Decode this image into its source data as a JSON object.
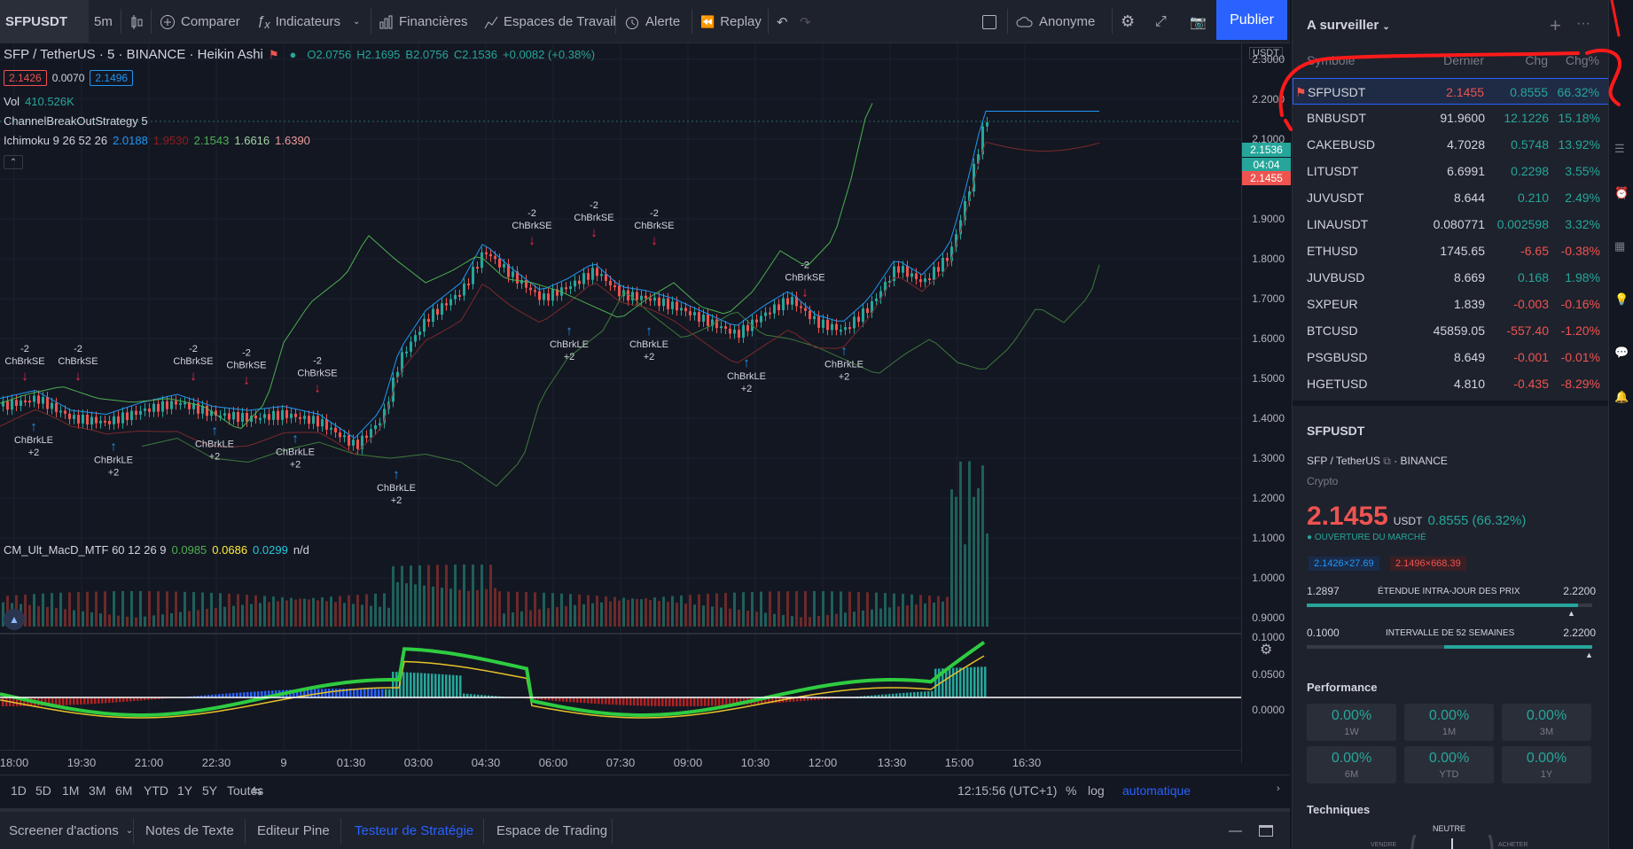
{
  "toolbar": {
    "symbol": "SFPUSDT",
    "interval": "5m",
    "compare": "Comparer",
    "indicators": "Indicateurs",
    "financials": "Financières",
    "workspaces": "Espaces de Travail",
    "alert": "Alerte",
    "replay": "Replay",
    "account": "Anonyme",
    "publish": "Publier"
  },
  "chart": {
    "title": "SFP / TetherUS · 5 · BINANCE · Heikin Ashi",
    "ohlc": {
      "o": "O2.0756",
      "h": "H2.1695",
      "b": "B2.0756",
      "c": "C2.1536",
      "change": "+0.0082 (+0.38%)"
    },
    "bid": "2.1426",
    "spread": "0.0070",
    "ask": "2.1496",
    "volume_label": "Vol",
    "volume_value": "410.526K",
    "strategy": "ChannelBreakOutStrategy 5",
    "ichimoku_label": "Ichimoku 9 26 52 26",
    "ichimoku_values": [
      "2.0188",
      "1.9530",
      "2.1543",
      "1.6616",
      "1.6390"
    ],
    "macd_label": "CM_Ult_MacD_MTF 60 12 26 9",
    "macd_values": [
      "0.0985",
      "0.0686",
      "0.0299",
      "n/d"
    ],
    "currency": "USDT",
    "price_ticks": [
      "2.3000",
      "2.2000",
      "2.1000",
      "2.0000",
      "1.9000",
      "1.8000",
      "1.7000",
      "1.6000",
      "1.5000",
      "1.4000",
      "1.3000",
      "1.2000",
      "1.1000",
      "1.0000",
      "0.9000"
    ],
    "macd_ticks": [
      "0.1000",
      "0.0500",
      "0.0000"
    ],
    "price_tags": {
      "last": "2.1536",
      "countdown": "04:04",
      "current": "2.1455"
    },
    "time_ticks": [
      "18:00",
      "19:30",
      "21:00",
      "22:30",
      "9",
      "01:30",
      "03:00",
      "04:30",
      "06:00",
      "07:30",
      "09:00",
      "10:30",
      "12:00",
      "13:30",
      "15:00",
      "16:30"
    ],
    "signals": {
      "short_label": "ChBrkSE",
      "long_label": "ChBrkLE",
      "qty_short": "-2",
      "qty_long": "+2"
    }
  },
  "range_bar": {
    "ranges": [
      "1D",
      "5D",
      "1M",
      "3M",
      "6M",
      "YTD",
      "1Y",
      "5Y",
      "Toutes"
    ],
    "clock": "12:15:56 (UTC+1)",
    "percent": "%",
    "log": "log",
    "auto": "automatique"
  },
  "bottom_tabs": [
    "Screener d'actions",
    "Notes de Texte",
    "Editeur Pine",
    "Testeur de Stratégie",
    "Espace de Trading"
  ],
  "watchlist": {
    "title": "A surveiller",
    "headers": {
      "symbol": "Symbole",
      "last": "Dernier",
      "chg": "Chg",
      "chgp": "Chg%"
    },
    "rows": [
      {
        "sym": "SFPUSDT",
        "last": "2.1455",
        "chg": "0.8555",
        "chgp": "66.32%",
        "dir": "up"
      },
      {
        "sym": "BNBUSDT",
        "last": "91.9600",
        "chg": "12.1226",
        "chgp": "15.18%",
        "dir": "up"
      },
      {
        "sym": "CAKEBUSD",
        "last": "4.7028",
        "chg": "0.5748",
        "chgp": "13.92%",
        "dir": "up"
      },
      {
        "sym": "LITUSDT",
        "last": "6.6991",
        "chg": "0.2298",
        "chgp": "3.55%",
        "dir": "up"
      },
      {
        "sym": "JUVUSDT",
        "last": "8.644",
        "chg": "0.210",
        "chgp": "2.49%",
        "dir": "up"
      },
      {
        "sym": "LINAUSDT",
        "last": "0.080771",
        "chg": "0.002598",
        "chgp": "3.32%",
        "dir": "up"
      },
      {
        "sym": "ETHUSD",
        "last": "1745.65",
        "chg": "-6.65",
        "chgp": "-0.38%",
        "dir": "dn"
      },
      {
        "sym": "JUVBUSD",
        "last": "8.669",
        "chg": "0.168",
        "chgp": "1.98%",
        "dir": "up"
      },
      {
        "sym": "SXPEUR",
        "last": "1.839",
        "chg": "-0.003",
        "chgp": "-0.16%",
        "dir": "dn"
      },
      {
        "sym": "BTCUSD",
        "last": "45859.05",
        "chg": "-557.40",
        "chgp": "-1.20%",
        "dir": "dn"
      },
      {
        "sym": "PSGBUSD",
        "last": "8.649",
        "chg": "-0.001",
        "chgp": "-0.01%",
        "dir": "dn"
      },
      {
        "sym": "HGETUSD",
        "last": "4.810",
        "chg": "-0.435",
        "chgp": "-8.29%",
        "dir": "dn"
      }
    ]
  },
  "details": {
    "symbol": "SFPUSDT",
    "name": "SFP / TetherUS",
    "exchange": "BINANCE",
    "type": "Crypto",
    "price": "2.1455",
    "currency": "USDT",
    "change": "0.8555 (66.32%)",
    "market_status": "OUVERTURE DU MARCHÉ",
    "bid": "2.1426×27.69",
    "ask": "2.1496×668.39",
    "day_low": "1.2897",
    "day_label": "ÉTENDUE INTRA-JOUR DES PRIX",
    "day_high": "2.2200",
    "year_low": "0.1000",
    "year_label": "INTERVALLE DE 52 SEMAINES",
    "year_high": "2.2200",
    "performance_title": "Performance",
    "performance": [
      {
        "v": "0.00%",
        "l": "1W"
      },
      {
        "v": "0.00%",
        "l": "1M"
      },
      {
        "v": "0.00%",
        "l": "3M"
      },
      {
        "v": "0.00%",
        "l": "6M"
      },
      {
        "v": "0.00%",
        "l": "YTD"
      },
      {
        "v": "0.00%",
        "l": "1Y"
      }
    ],
    "technicals_title": "Techniques",
    "gauge_label": "NEUTRE",
    "gauge_left": "VENDRE",
    "gauge_right": "ACHETER"
  },
  "colors": {
    "up": "#26a69a",
    "down": "#ef5350",
    "accent": "#2962ff"
  }
}
